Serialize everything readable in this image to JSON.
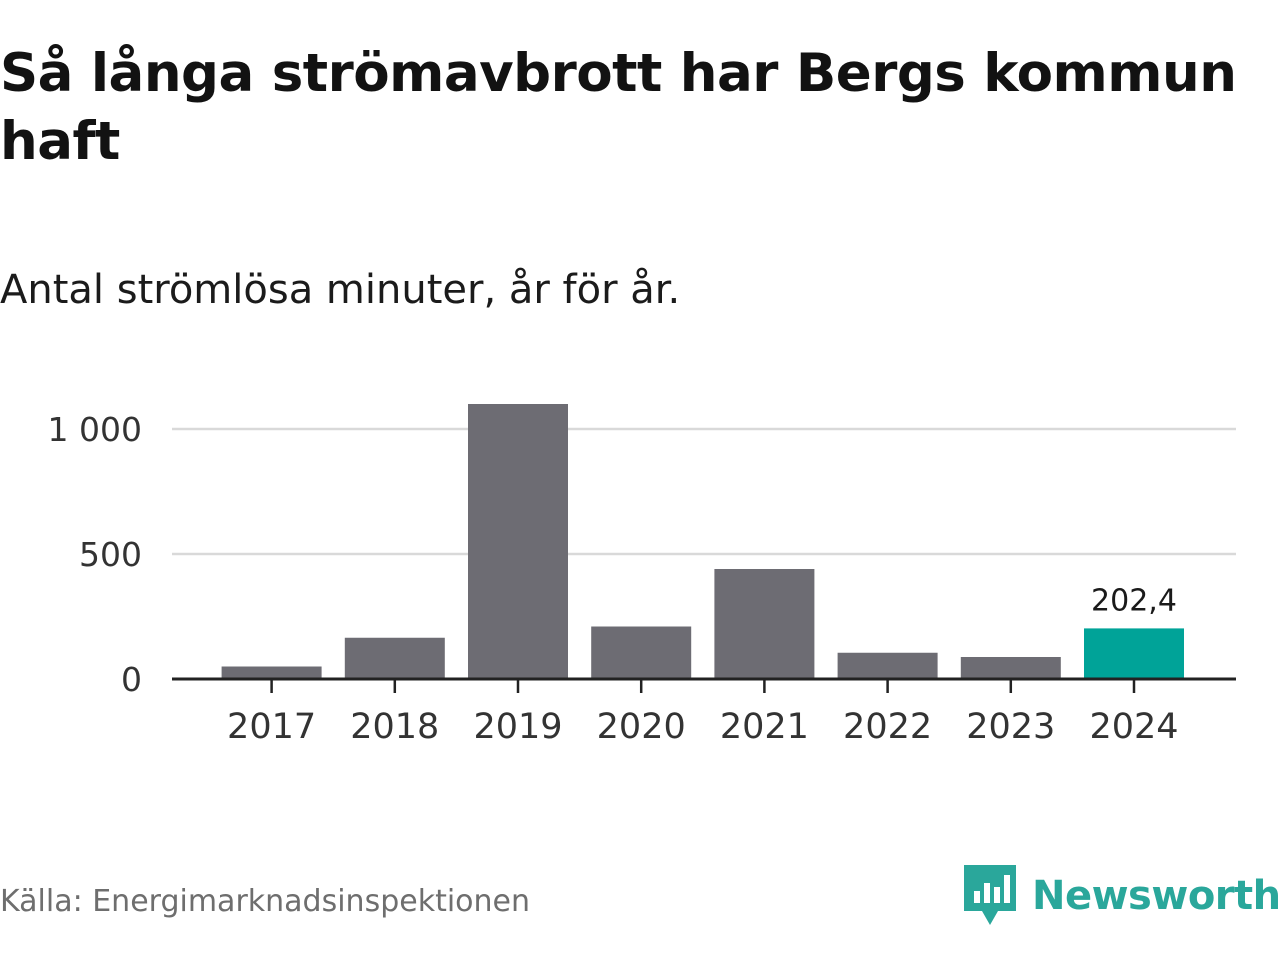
{
  "title": "Så långa strömavbrott har Bergs kommun haft",
  "subtitle": "Antal strömlösa minuter, år för år.",
  "source": "Källa: Energimarknadsinspektionen",
  "brand": {
    "name": "Newsworthy",
    "icon": "newsworthy-logo-icon",
    "color": "#2aa79b"
  },
  "colors": {
    "bar": "#6d6c73",
    "highlight": "#00a398",
    "grid": "#d9d9d9",
    "axis": "#222222"
  },
  "chart_data": {
    "type": "bar",
    "categories": [
      "2017",
      "2018",
      "2019",
      "2020",
      "2021",
      "2022",
      "2023",
      "2024"
    ],
    "values": [
      50,
      165,
      1100,
      210,
      440,
      105,
      88,
      202.4
    ],
    "highlight_index": 7,
    "data_labels": [
      {
        "index": 7,
        "text": "202,4"
      }
    ],
    "yticks": [
      {
        "value": 0,
        "label": "0"
      },
      {
        "value": 500,
        "label": "500"
      },
      {
        "value": 1000,
        "label": "1 000"
      }
    ],
    "ylim": [
      0,
      1100
    ],
    "xlabel": "",
    "ylabel": "",
    "grid": true
  }
}
